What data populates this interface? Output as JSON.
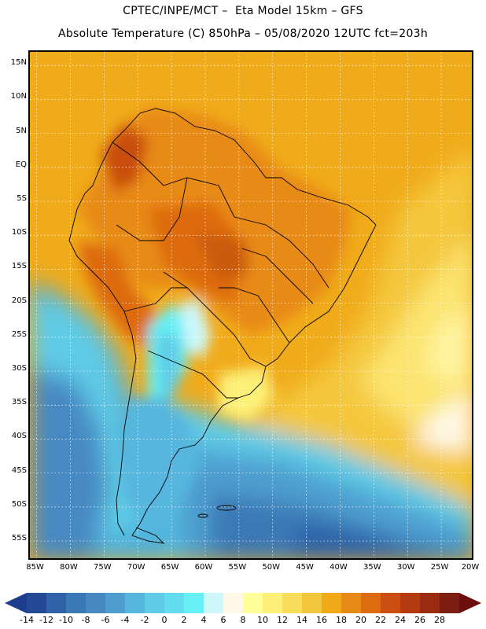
{
  "header": {
    "line1": "CPTEC/INPE/MCT –  Eta Model 15km – GFS",
    "line2": "Absolute Temperature (C) 850hPa – 05/08/2020 12UTC fct=203h"
  },
  "map": {
    "domain": {
      "lon_min": -86,
      "lon_max": -20,
      "lat_min": -58,
      "lat_max": 17
    },
    "lat_labels": [
      {
        "lat": 15,
        "text": "15N"
      },
      {
        "lat": 10,
        "text": "10N"
      },
      {
        "lat": 5,
        "text": "5N"
      },
      {
        "lat": 0,
        "text": "EQ"
      },
      {
        "lat": -5,
        "text": "5S"
      },
      {
        "lat": -10,
        "text": "10S"
      },
      {
        "lat": -15,
        "text": "15S"
      },
      {
        "lat": -20,
        "text": "20S"
      },
      {
        "lat": -25,
        "text": "25S"
      },
      {
        "lat": -30,
        "text": "30S"
      },
      {
        "lat": -35,
        "text": "35S"
      },
      {
        "lat": -40,
        "text": "40S"
      },
      {
        "lat": -45,
        "text": "45S"
      },
      {
        "lat": -50,
        "text": "50S"
      },
      {
        "lat": -55,
        "text": "55S"
      }
    ],
    "lon_labels": [
      {
        "lon": -85,
        "text": "85W"
      },
      {
        "lon": -80,
        "text": "80W"
      },
      {
        "lon": -75,
        "text": "75W"
      },
      {
        "lon": -70,
        "text": "70W"
      },
      {
        "lon": -65,
        "text": "65W"
      },
      {
        "lon": -60,
        "text": "60W"
      },
      {
        "lon": -55,
        "text": "55W"
      },
      {
        "lon": -50,
        "text": "50W"
      },
      {
        "lon": -45,
        "text": "45W"
      },
      {
        "lon": -40,
        "text": "40W"
      },
      {
        "lon": -35,
        "text": "35W"
      },
      {
        "lon": -30,
        "text": "30W"
      },
      {
        "lon": -25,
        "text": "25W"
      },
      {
        "lon": -20,
        "text": "20W"
      }
    ]
  },
  "colorbar": {
    "min_color": "#1e3c8c",
    "max_color": "#6b0f0f",
    "colors": [
      "#244a97",
      "#2f62a8",
      "#3a78b6",
      "#4689c2",
      "#4d9ecf",
      "#57b6dd",
      "#5fcbe6",
      "#63dcef",
      "#66f0f5",
      "#cdf7fa",
      "#fff8e6",
      "#ffff9a",
      "#fdf078",
      "#f7dd5a",
      "#f2c73e",
      "#f0aa18",
      "#e88a18",
      "#dd6b10",
      "#c94e10",
      "#b43a0f",
      "#9a2a10",
      "#7d1e12"
    ],
    "labels": [
      "-14",
      "-12",
      "-10",
      "-8",
      "-6",
      "-4",
      "-2",
      "0",
      "2",
      "4",
      "6",
      "8",
      "10",
      "12",
      "14",
      "16",
      "18",
      "20",
      "22",
      "24",
      "26",
      "28"
    ]
  }
}
